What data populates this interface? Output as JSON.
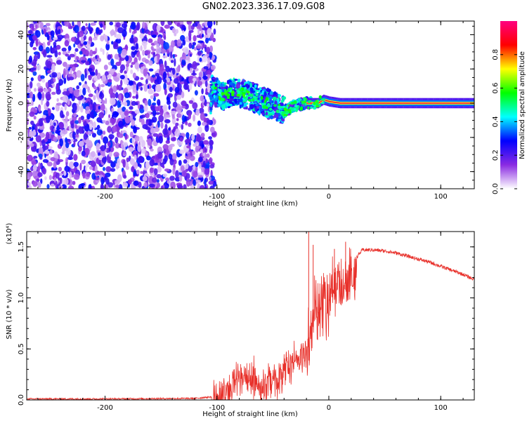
{
  "title": "GN02.2023.336.17.09.G08",
  "chart_data": [
    {
      "type": "heatmap",
      "xlabel": "Height of straight line (km)",
      "ylabel": "Frequency (Hz)",
      "xlim": [
        -270,
        130
      ],
      "ylim": [
        -50,
        48
      ],
      "xticks": [
        -200,
        -100,
        0,
        100
      ],
      "xtick_labels": [
        "-200",
        "-100",
        "0",
        "100"
      ],
      "yticks": [
        -40,
        -20,
        0,
        20,
        40
      ],
      "ytick_labels": [
        "-40",
        "-20",
        "0",
        "20",
        "40"
      ],
      "colorbar": {
        "label": "Normalized spectral amplitude",
        "range": [
          0,
          1
        ],
        "ticks": [
          0,
          0.2,
          0.4,
          0.6,
          0.8
        ],
        "tick_labels": [
          "0.0",
          "0.2",
          "0.4",
          "0.6",
          "0.8"
        ],
        "colormap": [
          "#ffffff",
          "#8a2be2",
          "#0000ff",
          "#00ffff",
          "#00ff00",
          "#ffff00",
          "#ff0000",
          "#ff0080"
        ]
      },
      "regions": {
        "noise_x": [
          -270,
          -106
        ],
        "noise_level": 0.25,
        "tone_ridge": [
          {
            "x": -105,
            "y": 8
          },
          {
            "x": -95,
            "y": 4
          },
          {
            "x": -85,
            "y": 6
          },
          {
            "x": -75,
            "y": 5
          },
          {
            "x": -65,
            "y": 3
          },
          {
            "x": -55,
            "y": 0
          },
          {
            "x": -45,
            "y": -3
          },
          {
            "x": -40,
            "y": -5
          },
          {
            "x": -35,
            "y": -3
          },
          {
            "x": -30,
            "y": -1
          },
          {
            "x": -20,
            "y": 0
          },
          {
            "x": -10,
            "y": 0
          },
          {
            "x": -5,
            "y": 2
          },
          {
            "x": 0,
            "y": 1
          },
          {
            "x": 10,
            "y": 0
          },
          {
            "x": 130,
            "y": 0
          }
        ],
        "tone_peak_amplitude": 0.95
      }
    },
    {
      "type": "line",
      "xlabel": "Height of straight line (km)",
      "ylabel": "SNR (10 * v/v)",
      "y_multiplier": "(x10⁴)",
      "xlim": [
        -270,
        130
      ],
      "ylim": [
        0,
        1.65
      ],
      "xticks": [
        -200,
        -100,
        0,
        100
      ],
      "xtick_labels": [
        "-200",
        "-100",
        "0",
        "100"
      ],
      "yticks": [
        0,
        0.5,
        1.0,
        1.5
      ],
      "ytick_labels": [
        "0.0",
        "0.5",
        "1.0",
        "1.5"
      ],
      "series": [
        {
          "color": "#e8302a",
          "x": [
            -270,
            -200,
            -120,
            -105,
            -100,
            -90,
            -80,
            -70,
            -60,
            -50,
            -45,
            -40,
            -35,
            -30,
            -25,
            -20,
            -18,
            -15,
            -12,
            -10,
            -5,
            0,
            5,
            10,
            15,
            20,
            25,
            30,
            40,
            50,
            60,
            70,
            80,
            90,
            100,
            110,
            120,
            130
          ],
          "y": [
            0.01,
            0.01,
            0.015,
            0.03,
            0.08,
            0.2,
            0.35,
            0.3,
            0.25,
            0.28,
            0.3,
            0.42,
            0.45,
            0.45,
            0.5,
            0.55,
            0.75,
            0.9,
            1.05,
            1.05,
            1.12,
            1.2,
            1.25,
            1.3,
            1.28,
            1.35,
            1.4,
            1.47,
            1.47,
            1.46,
            1.44,
            1.41,
            1.38,
            1.35,
            1.31,
            1.27,
            1.23,
            1.18
          ]
        }
      ],
      "spikes": [
        {
          "x": -18,
          "y": 1.68
        },
        {
          "x": -14,
          "y": 1.52
        },
        {
          "x": 5,
          "y": 1.48
        },
        {
          "x": 15,
          "y": 1.55
        }
      ]
    }
  ]
}
